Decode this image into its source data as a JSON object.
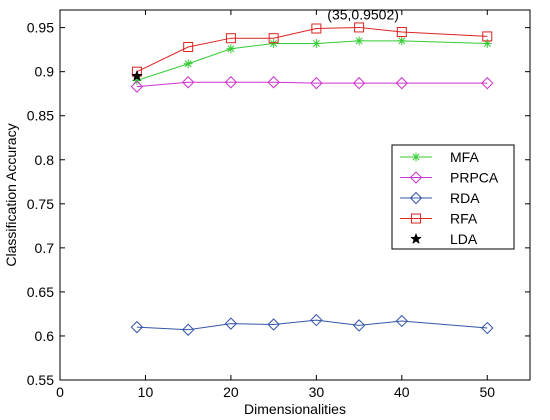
{
  "chart_data": {
    "type": "line",
    "title": "",
    "xlabel": "Dimensionalities",
    "ylabel": "Classification Accuracy",
    "xlim": [
      0,
      55
    ],
    "ylim": [
      0.55,
      0.97
    ],
    "xticks": [
      0,
      10,
      20,
      30,
      40,
      50
    ],
    "yticks": [
      0.55,
      0.6,
      0.65,
      0.7,
      0.75,
      0.8,
      0.85,
      0.9,
      0.95
    ],
    "xtick_labels": [
      "0",
      "10",
      "20",
      "30",
      "40",
      "50"
    ],
    "ytick_labels": [
      "0.55",
      "0.6",
      "0.65",
      "0.7",
      "0.75",
      "0.8",
      "0.85",
      "0.9",
      "0.95"
    ],
    "grid": false,
    "legend_position": "right",
    "series": [
      {
        "name": "MFA",
        "color": "#33cc33",
        "marker": "asterisk",
        "x": [
          9,
          15,
          20,
          25,
          30,
          35,
          40,
          50
        ],
        "y": [
          0.89,
          0.909,
          0.926,
          0.932,
          0.932,
          0.935,
          0.935,
          0.932
        ]
      },
      {
        "name": "PRPCA",
        "color": "#cc33cc",
        "marker": "diamond",
        "x": [
          9,
          15,
          20,
          25,
          30,
          35,
          40,
          50
        ],
        "y": [
          0.883,
          0.888,
          0.888,
          0.888,
          0.887,
          0.887,
          0.887,
          0.887
        ]
      },
      {
        "name": "RDA",
        "color": "#3355aa",
        "marker": "diamond",
        "x": [
          9,
          15,
          20,
          25,
          30,
          35,
          40,
          50
        ],
        "y": [
          0.61,
          0.607,
          0.614,
          0.613,
          0.618,
          0.612,
          0.617,
          0.609
        ]
      },
      {
        "name": "RFA",
        "color": "#dd2222",
        "marker": "square",
        "x": [
          9,
          15,
          20,
          25,
          30,
          35,
          40,
          50
        ],
        "y": [
          0.9,
          0.928,
          0.938,
          0.938,
          0.949,
          0.9502,
          0.945,
          0.94
        ]
      },
      {
        "name": "LDA",
        "color": "#000000",
        "marker": "star",
        "x": [
          9
        ],
        "y": [
          0.895
        ]
      }
    ],
    "annotations": [
      {
        "text": "(35,0.9502)",
        "x": 35,
        "y": 0.9502
      }
    ]
  }
}
